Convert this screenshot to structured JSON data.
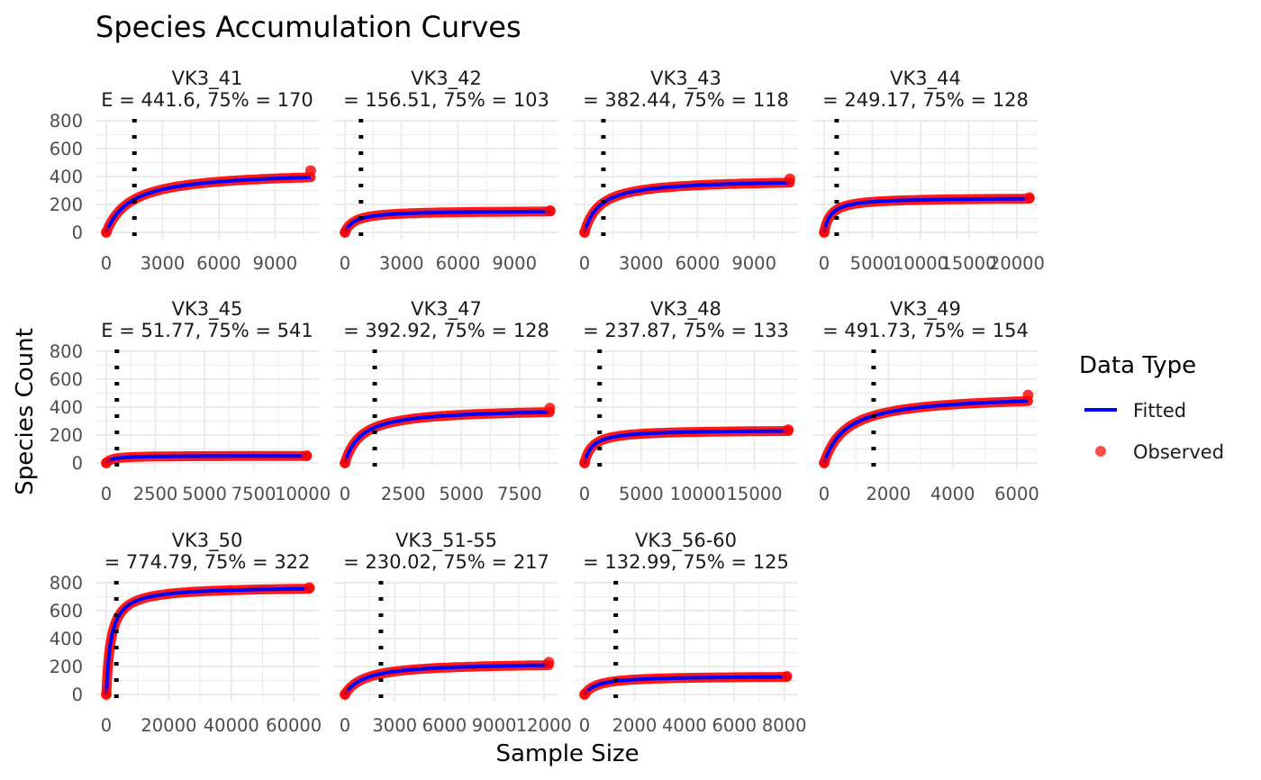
{
  "title": "Species Accumulation Curves",
  "xlabel": "Sample Size",
  "ylabel": "Species Count",
  "legend": {
    "title": "Data Type",
    "items": [
      {
        "label": "Fitted",
        "color": "#0000ff",
        "kind": "line"
      },
      {
        "label": "Observed",
        "color": "#ff0000",
        "kind": "point"
      }
    ]
  },
  "colors": {
    "fitted": "#0000ff",
    "observed": "#ff0000",
    "marker": "#000000",
    "grid": "#ebebeb"
  },
  "chart_data": [
    {
      "type": "line",
      "name": "VK3_41",
      "subtitle": "E = 441.6, 75% = 170",
      "x_ticks": [
        "0",
        "3000",
        "6000",
        "9000"
      ],
      "x_tick_values": [
        0,
        3000,
        6000,
        9000
      ],
      "xlim": [
        0,
        11000
      ],
      "y_ticks": [
        "0",
        "200",
        "400",
        "600",
        "800"
      ],
      "ylim": [
        0,
        800
      ],
      "asymptote": 441.6,
      "b": 1300,
      "vline_x": 1500,
      "x_max": 10900,
      "end_y": 442
    },
    {
      "type": "line",
      "name": "VK3_42",
      "subtitle": "= 156.51, 75% = 103",
      "x_ticks": [
        "0",
        "3000",
        "6000",
        "9000"
      ],
      "x_tick_values": [
        0,
        3000,
        6000,
        9000
      ],
      "xlim": [
        0,
        11000
      ],
      "y_ticks": [
        "0",
        "200",
        "400",
        "600",
        "800"
      ],
      "ylim": [
        0,
        800
      ],
      "asymptote": 156.51,
      "b": 500,
      "vline_x": 850,
      "x_max": 10900,
      "end_y": 156
    },
    {
      "type": "line",
      "name": "VK3_43",
      "subtitle": "= 382.44, 75% = 118",
      "x_ticks": [
        "0",
        "3000",
        "6000",
        "9000"
      ],
      "x_tick_values": [
        0,
        3000,
        6000,
        9000
      ],
      "xlim": [
        0,
        11000
      ],
      "y_ticks": [
        "0",
        "200",
        "400",
        "600",
        "800"
      ],
      "ylim": [
        0,
        800
      ],
      "asymptote": 382.44,
      "b": 800,
      "vline_x": 1000,
      "x_max": 10900,
      "end_y": 383
    },
    {
      "type": "line",
      "name": "VK3_44",
      "subtitle": "= 249.17, 75% = 128",
      "x_ticks": [
        "0",
        "5000",
        "10000",
        "15000",
        "20000"
      ],
      "x_tick_values": [
        0,
        5000,
        10000,
        15000,
        20000
      ],
      "xlim": [
        0,
        21500
      ],
      "y_ticks": [
        "0",
        "200",
        "400",
        "600",
        "800"
      ],
      "ylim": [
        0,
        800
      ],
      "asymptote": 249.17,
      "b": 700,
      "vline_x": 1300,
      "x_max": 21300,
      "end_y": 249
    },
    {
      "type": "line",
      "name": "VK3_45",
      "subtitle": "E = 51.77, 75% = 541",
      "x_ticks": [
        "0",
        "2500",
        "5000",
        "7500",
        "10000"
      ],
      "x_tick_values": [
        0,
        2500,
        5000,
        7500,
        10000
      ],
      "xlim": [
        0,
        10500
      ],
      "y_ticks": [
        "0",
        "200",
        "400",
        "600",
        "800"
      ],
      "ylim": [
        0,
        800
      ],
      "asymptote": 51.77,
      "b": 300,
      "vline_x": 541,
      "x_max": 10200,
      "end_y": 52
    },
    {
      "type": "line",
      "name": "VK3_47",
      "subtitle": "= 392.92, 75% = 128",
      "x_ticks": [
        "0",
        "2500",
        "5000",
        "7500"
      ],
      "x_tick_values": [
        0,
        2500,
        5000,
        7500
      ],
      "xlim": [
        0,
        8900
      ],
      "y_ticks": [
        "0",
        "200",
        "400",
        "600",
        "800"
      ],
      "ylim": [
        0,
        800
      ],
      "asymptote": 392.92,
      "b": 700,
      "vline_x": 1280,
      "x_max": 8800,
      "end_y": 393
    },
    {
      "type": "line",
      "name": "VK3_48",
      "subtitle": "= 237.87, 75% = 133",
      "x_ticks": [
        "0",
        "5000",
        "10000",
        "15000"
      ],
      "x_tick_values": [
        0,
        5000,
        10000,
        15000
      ],
      "xlim": [
        0,
        18300
      ],
      "y_ticks": [
        "0",
        "200",
        "400",
        "600",
        "800"
      ],
      "ylim": [
        0,
        800
      ],
      "asymptote": 237.87,
      "b": 700,
      "vline_x": 1330,
      "x_max": 18000,
      "end_y": 238
    },
    {
      "type": "line",
      "name": "VK3_49",
      "subtitle": "= 491.73, 75% = 154",
      "x_ticks": [
        "0",
        "2000",
        "4000",
        "6000"
      ],
      "x_tick_values": [
        0,
        2000,
        4000,
        6000
      ],
      "xlim": [
        0,
        6450
      ],
      "y_ticks": [
        "0",
        "200",
        "400",
        "600",
        "800"
      ],
      "ylim": [
        0,
        800
      ],
      "asymptote": 491.73,
      "b": 700,
      "vline_x": 1540,
      "x_max": 6350,
      "end_y": 486
    },
    {
      "type": "line",
      "name": "VK3_50",
      "subtitle": "= 774.79, 75% = 322",
      "x_ticks": [
        "0",
        "20000",
        "40000",
        "60000"
      ],
      "x_tick_values": [
        0,
        20000,
        40000,
        60000
      ],
      "xlim": [
        0,
        66000
      ],
      "y_ticks": [
        "0",
        "200",
        "400",
        "600",
        "800"
      ],
      "ylim": [
        0,
        800
      ],
      "asymptote": 774.79,
      "b": 1500,
      "vline_x": 3220,
      "x_max": 65000,
      "end_y": 765
    },
    {
      "type": "line",
      "name": "VK3_51-55",
      "subtitle": "= 230.02, 75% = 217",
      "x_ticks": [
        "0",
        "3000",
        "6000",
        "9000",
        "12000"
      ],
      "x_tick_values": [
        0,
        3000,
        6000,
        9000,
        12000
      ],
      "xlim": [
        0,
        12500
      ],
      "y_ticks": [
        "0",
        "200",
        "400",
        "600",
        "800"
      ],
      "ylim": [
        0,
        800
      ],
      "asymptote": 230.02,
      "b": 1200,
      "vline_x": 2170,
      "x_max": 12300,
      "end_y": 230
    },
    {
      "type": "line",
      "name": "VK3_56-60",
      "subtitle": "= 132.99, 75% = 125",
      "x_ticks": [
        "0",
        "2000",
        "4000",
        "6000",
        "8000"
      ],
      "x_tick_values": [
        0,
        2000,
        4000,
        6000,
        8000
      ],
      "xlim": [
        0,
        8300
      ],
      "y_ticks": [
        "0",
        "200",
        "400",
        "600",
        "800"
      ],
      "ylim": [
        0,
        800
      ],
      "asymptote": 132.99,
      "b": 500,
      "vline_x": 1250,
      "x_max": 8100,
      "end_y": 130
    }
  ]
}
